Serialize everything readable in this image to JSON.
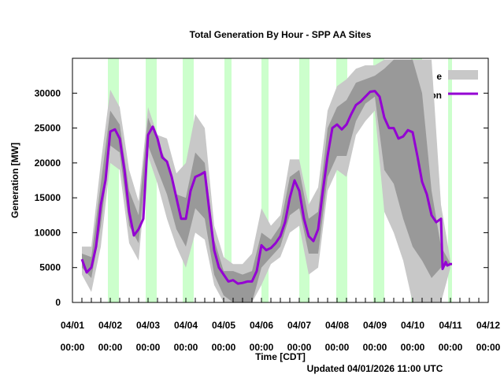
{
  "chart_data": {
    "type": "line",
    "title": "Total Generation By Hour - SPP AA Sites",
    "xlabel": "Time [CDT]",
    "ylabel": "Generation [MW]",
    "footer": "Updated 04/01/2026 11:00 UTC",
    "ylim": [
      0,
      35000
    ],
    "yticks": [
      0,
      5000,
      10000,
      15000,
      20000,
      25000,
      30000
    ],
    "xlim": [
      "04/01 00:00",
      "04/12 00:00"
    ],
    "xticks": [
      {
        "date": "04/01",
        "time": "00:00"
      },
      {
        "date": "04/02",
        "time": "00:00"
      },
      {
        "date": "04/03",
        "time": "00:00"
      },
      {
        "date": "04/04",
        "time": "00:00"
      },
      {
        "date": "04/05",
        "time": "00:00"
      },
      {
        "date": "04/06",
        "time": "00:00"
      },
      {
        "date": "04/07",
        "time": "00:00"
      },
      {
        "date": "04/08",
        "time": "00:00"
      },
      {
        "date": "04/09",
        "time": "00:00"
      },
      {
        "date": "04/10",
        "time": "00:00"
      },
      {
        "date": "04/11",
        "time": "00:00"
      },
      {
        "date": "04/12",
        "time": "00:00"
      }
    ],
    "grid": false,
    "legend_placement": "top-right",
    "legend": [
      {
        "label": "e",
        "kind": "band",
        "color": "#c8c8c8"
      },
      {
        "label": "Generation",
        "kind": "line",
        "color": "#9400d3"
      }
    ],
    "colors": {
      "outer_band": "#c8c8c8",
      "inner_band": "#999999",
      "line": "#9400d3",
      "highlight": "#ccffcc"
    },
    "highlight_periods": [
      [
        "04/01 22:30",
        "04/02 05:30"
      ],
      [
        "04/02 22:30",
        "04/03 05:30"
      ],
      [
        "04/03 22:00",
        "04/04 05:00"
      ],
      [
        "04/05 00:30",
        "04/05 05:00"
      ],
      [
        "04/06 00:00",
        "04/06 04:30"
      ],
      [
        "04/07 00:00",
        "04/07 06:30"
      ],
      [
        "04/07 23:30",
        "04/08 06:30"
      ],
      [
        "04/08 23:00",
        "04/09 06:00"
      ],
      [
        "04/09 23:00",
        "04/10 06:00"
      ],
      [
        "04/10 22:30",
        "04/11 01:00"
      ]
    ],
    "bands": {
      "columns": [
        "time",
        "outer_low",
        "inner_low",
        "inner_high",
        "outer_high"
      ],
      "rows": [
        [
          "04/01 06:00",
          4000,
          5000,
          7000,
          8000
        ],
        [
          "04/01 12:00",
          1500,
          3500,
          6500,
          8000
        ],
        [
          "04/01 18:00",
          8000,
          11000,
          17000,
          20000
        ],
        [
          "04/02 00:00",
          20000,
          22500,
          27500,
          30500
        ],
        [
          "04/02 06:00",
          19000,
          21500,
          25500,
          28000
        ],
        [
          "04/02 12:00",
          8500,
          11000,
          16000,
          19000
        ],
        [
          "04/02 18:00",
          6000,
          8500,
          12500,
          14500
        ],
        [
          "04/03 00:00",
          21000,
          22500,
          26500,
          28000
        ],
        [
          "04/03 06:00",
          17000,
          19000,
          23000,
          24000
        ],
        [
          "04/03 12:00",
          12000,
          15500,
          20000,
          23500
        ],
        [
          "04/03 18:00",
          8000,
          10500,
          15500,
          18500
        ],
        [
          "04/04 00:00",
          5000,
          8000,
          15000,
          20000
        ],
        [
          "04/04 06:00",
          10000,
          13500,
          21500,
          27000
        ],
        [
          "04/04 12:00",
          9000,
          12000,
          20000,
          25000
        ],
        [
          "04/04 18:00",
          2500,
          4000,
          9000,
          11000
        ],
        [
          "04/05 00:00",
          0,
          1000,
          4500,
          6500
        ],
        [
          "04/05 06:00",
          0,
          0,
          4500,
          5500
        ],
        [
          "04/05 12:00",
          0,
          0,
          4000,
          5500
        ],
        [
          "04/05 18:00",
          0,
          0,
          4500,
          7000
        ],
        [
          "04/06 00:00",
          2500,
          5000,
          10000,
          13500
        ],
        [
          "04/06 06:00",
          5500,
          6500,
          9000,
          11000
        ],
        [
          "04/06 12:00",
          6500,
          8000,
          11000,
          12500
        ],
        [
          "04/06 18:00",
          10000,
          12500,
          18000,
          20500
        ],
        [
          "04/07 00:00",
          11000,
          13500,
          19000,
          20500
        ],
        [
          "04/07 06:00",
          4000,
          7000,
          12000,
          14000
        ],
        [
          "04/07 12:00",
          5000,
          7000,
          13000,
          16500
        ],
        [
          "04/07 18:00",
          16000,
          18000,
          25000,
          27500
        ],
        [
          "04/08 00:00",
          19000,
          21000,
          28000,
          31000
        ],
        [
          "04/08 06:00",
          18000,
          21000,
          29000,
          32000
        ],
        [
          "04/08 12:00",
          24000,
          26000,
          31500,
          33500
        ],
        [
          "04/08 18:00",
          26000,
          28500,
          32000,
          34000
        ],
        [
          "04/09 00:00",
          27500,
          29500,
          32500,
          34000
        ],
        [
          "04/09 06:00",
          13000,
          19000,
          33500,
          34800
        ],
        [
          "04/09 12:00",
          10000,
          17000,
          34800,
          34800
        ],
        [
          "04/09 18:00",
          6000,
          12000,
          34800,
          34800
        ],
        [
          "04/10 00:00",
          0,
          8000,
          34800,
          34800
        ],
        [
          "04/10 06:00",
          0,
          6000,
          30000,
          34800
        ],
        [
          "04/10 12:00",
          0,
          3500,
          16000,
          34800
        ],
        [
          "04/10 18:00",
          0,
          5000,
          8000,
          14000
        ],
        [
          "04/11 00:00",
          5000,
          5500,
          5600,
          6000
        ]
      ]
    },
    "series": [
      {
        "name": "Generation",
        "points": [
          [
            "04/01 06:00",
            6200
          ],
          [
            "04/01 09:00",
            4300
          ],
          [
            "04/01 12:00",
            5000
          ],
          [
            "04/01 15:00",
            8000
          ],
          [
            "04/01 18:00",
            14000
          ],
          [
            "04/01 21:00",
            17500
          ],
          [
            "04/02 00:00",
            24500
          ],
          [
            "04/02 03:00",
            24800
          ],
          [
            "04/02 06:00",
            23500
          ],
          [
            "04/02 09:00",
            19000
          ],
          [
            "04/02 12:00",
            13000
          ],
          [
            "04/02 15:00",
            9600
          ],
          [
            "04/02 18:00",
            10500
          ],
          [
            "04/02 21:00",
            12000
          ],
          [
            "04/03 00:00",
            24000
          ],
          [
            "04/03 03:00",
            25200
          ],
          [
            "04/03 06:00",
            23500
          ],
          [
            "04/03 09:00",
            20800
          ],
          [
            "04/03 12:00",
            20200
          ],
          [
            "04/03 15:00",
            18000
          ],
          [
            "04/03 18:00",
            15000
          ],
          [
            "04/03 21:00",
            12000
          ],
          [
            "04/04 00:00",
            12000
          ],
          [
            "04/04 03:00",
            16000
          ],
          [
            "04/04 06:00",
            18000
          ],
          [
            "04/04 09:00",
            18300
          ],
          [
            "04/04 12:00",
            18700
          ],
          [
            "04/04 15:00",
            13000
          ],
          [
            "04/04 18:00",
            7500
          ],
          [
            "04/04 21:00",
            5000
          ],
          [
            "04/05 00:00",
            4000
          ],
          [
            "04/05 03:00",
            3000
          ],
          [
            "04/05 06:00",
            3200
          ],
          [
            "04/05 09:00",
            2700
          ],
          [
            "04/05 12:00",
            2800
          ],
          [
            "04/05 15:00",
            3000
          ],
          [
            "04/05 18:00",
            3000
          ],
          [
            "04/05 21:00",
            4500
          ],
          [
            "04/06 00:00",
            8200
          ],
          [
            "04/06 03:00",
            7500
          ],
          [
            "04/06 06:00",
            7800
          ],
          [
            "04/06 09:00",
            8500
          ],
          [
            "04/06 12:00",
            9500
          ],
          [
            "04/06 15:00",
            11500
          ],
          [
            "04/06 18:00",
            15000
          ],
          [
            "04/06 21:00",
            17500
          ],
          [
            "04/07 00:00",
            16000
          ],
          [
            "04/07 03:00",
            12000
          ],
          [
            "04/07 06:00",
            9500
          ],
          [
            "04/07 09:00",
            8800
          ],
          [
            "04/07 12:00",
            10500
          ],
          [
            "04/07 15:00",
            16000
          ],
          [
            "04/07 18:00",
            21000
          ],
          [
            "04/07 21:00",
            25000
          ],
          [
            "04/08 00:00",
            25500
          ],
          [
            "04/08 03:00",
            24800
          ],
          [
            "04/08 06:00",
            25500
          ],
          [
            "04/08 09:00",
            27000
          ],
          [
            "04/08 12:00",
            28300
          ],
          [
            "04/08 15:00",
            28800
          ],
          [
            "04/08 18:00",
            29500
          ],
          [
            "04/08 21:00",
            30200
          ],
          [
            "04/09 00:00",
            30300
          ],
          [
            "04/09 03:00",
            29500
          ],
          [
            "04/09 06:00",
            26500
          ],
          [
            "04/09 09:00",
            25000
          ],
          [
            "04/09 12:00",
            25000
          ],
          [
            "04/09 15:00",
            23500
          ],
          [
            "04/09 18:00",
            23800
          ],
          [
            "04/09 21:00",
            24700
          ],
          [
            "04/10 00:00",
            24400
          ],
          [
            "04/10 03:00",
            21000
          ],
          [
            "04/10 06:00",
            17300
          ],
          [
            "04/10 09:00",
            15500
          ],
          [
            "04/10 12:00",
            12500
          ],
          [
            "04/10 15:00",
            11500
          ],
          [
            "04/10 18:00",
            12000
          ],
          [
            "04/10 19:00",
            4800
          ],
          [
            "04/10 21:00",
            5800
          ],
          [
            "04/10 22:00",
            5300
          ],
          [
            "04/11 00:00",
            5500
          ],
          [
            "04/11 01:00",
            5500
          ]
        ]
      }
    ]
  }
}
